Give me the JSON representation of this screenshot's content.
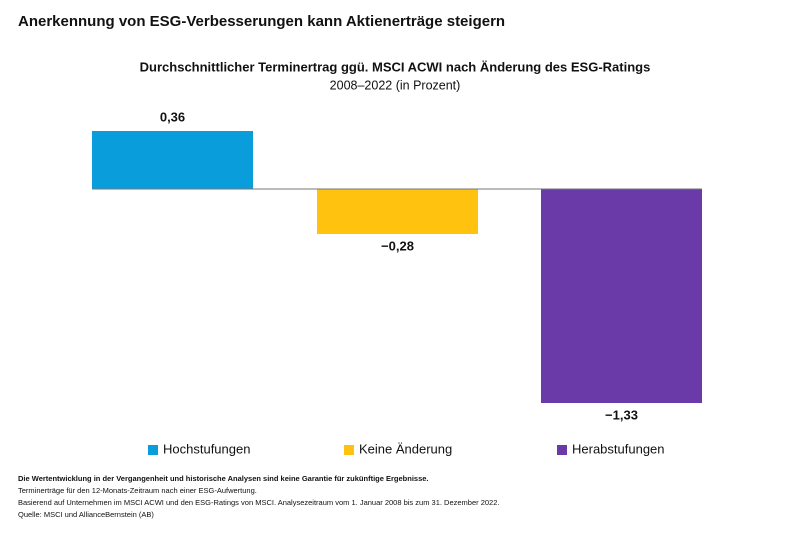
{
  "header": {
    "title": "Anerkennung von ESG-Verbesserungen kann Aktienerträge steigern"
  },
  "chart_data": {
    "type": "bar",
    "title": "Durchschnittlicher Terminertrag ggü. MSCI ACWI nach Änderung des ESG-Ratings",
    "subtitle": "2008–2022 (in Prozent)",
    "categories": [
      "Hochstufungen",
      "Keine Änderung",
      "Herabstufungen"
    ],
    "values": [
      0.36,
      -0.28,
      -1.33
    ],
    "value_labels": [
      "0,36",
      "−0,28",
      "−1,33"
    ],
    "colors": [
      "#0a9ddb",
      "#ffc20e",
      "#6a3aa8"
    ],
    "legend": "bottom"
  },
  "footnotes": [
    "Die Wertentwicklung in der Vergangenheit und historische Analysen sind keine Garantie für zukünftige Ergebnisse.",
    "Terminerträge für den 12-Monats-Zeitraum nach einer ESG-Aufwertung.",
    "Basierend auf Unternehmen im MSCI ACWI und den ESG-Ratings von MSCI. Analysezeitraum vom 1. Januar 2008 bis zum 31. Dezember 2022.",
    "Quelle: MSCI und AllianceBernstein (AB)"
  ]
}
